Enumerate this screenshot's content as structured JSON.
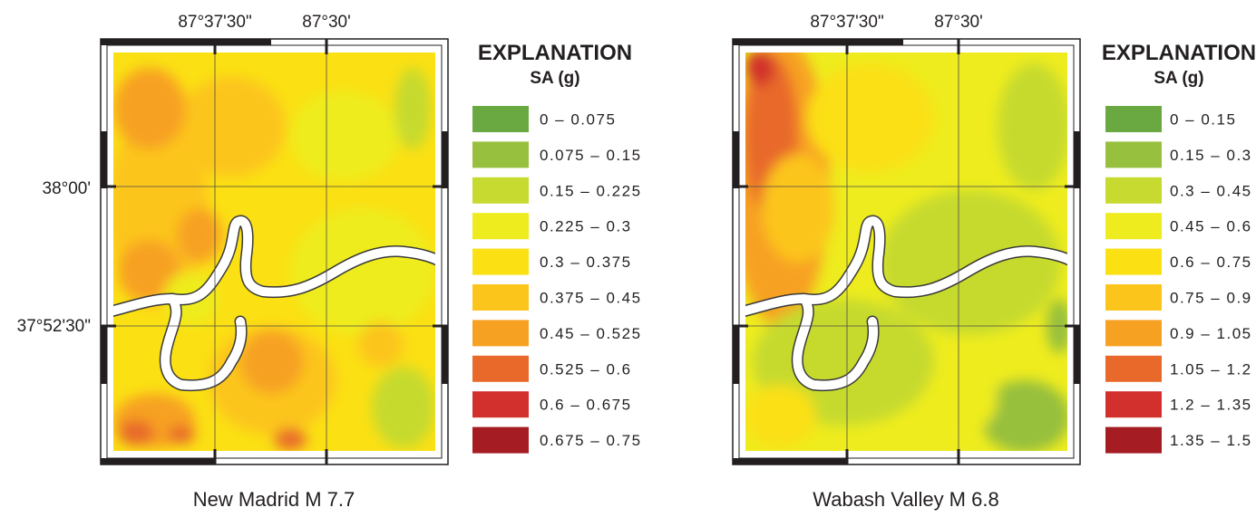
{
  "maps": [
    {
      "id": "new-madrid",
      "caption": "New Madrid M 7.7",
      "longitude_labels": [
        "87°37'30\"",
        "87°30'"
      ],
      "latitude_labels": [
        "38°00'",
        "37°52'30\""
      ],
      "explanation": {
        "title": "EXPLANATION",
        "subtitle": "SA (g)",
        "classes": [
          {
            "label": "0 – 0.075",
            "color": "#6aa942"
          },
          {
            "label": "0.075 – 0.15",
            "color": "#97c03e"
          },
          {
            "label": "0.15 – 0.225",
            "color": "#c6da2f"
          },
          {
            "label": "0.225 – 0.3",
            "color": "#eeec1e"
          },
          {
            "label": "0.3 – 0.375",
            "color": "#fbe014"
          },
          {
            "label": "0.375 – 0.45",
            "color": "#fcc51c"
          },
          {
            "label": "0.45 – 0.525",
            "color": "#f7a123"
          },
          {
            "label": "0.525 – 0.6",
            "color": "#e8692a"
          },
          {
            "label": "0.6 – 0.675",
            "color": "#d2302c"
          },
          {
            "label": "0.675 – 0.75",
            "color": "#a51c22"
          }
        ]
      }
    },
    {
      "id": "wabash-valley",
      "caption": "Wabash Valley M 6.8",
      "longitude_labels": [
        "87°37'30\"",
        "87°30'"
      ],
      "latitude_labels": [],
      "explanation": {
        "title": "EXPLANATION",
        "subtitle": "SA (g)",
        "classes": [
          {
            "label": "0 – 0.15",
            "color": "#6aa942"
          },
          {
            "label": "0.15 – 0.3",
            "color": "#97c03e"
          },
          {
            "label": "0.3 – 0.45",
            "color": "#c6da2f"
          },
          {
            "label": "0.45 – 0.6",
            "color": "#eeec1e"
          },
          {
            "label": "0.6 – 0.75",
            "color": "#fbe014"
          },
          {
            "label": "0.75 – 0.9",
            "color": "#fcc51c"
          },
          {
            "label": "0.9 – 1.05",
            "color": "#f7a123"
          },
          {
            "label": "1.05 – 1.2",
            "color": "#e8692a"
          },
          {
            "label": "1.2 – 1.35",
            "color": "#d2302c"
          },
          {
            "label": "1.35 – 1.5",
            "color": "#a51c22"
          }
        ]
      }
    }
  ],
  "colors": {
    "river": "#ffffff",
    "river_outline": "#3a3a3a",
    "frame": "#231f20",
    "grid": "#4a4a4a"
  }
}
